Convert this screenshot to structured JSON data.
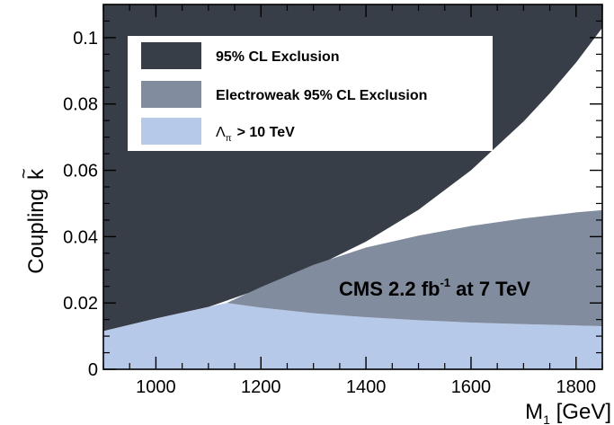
{
  "chart_data": {
    "type": "area",
    "xlabel_main": "M",
    "xlabel_sub": "1",
    "xlabel_unit": " [GeV]",
    "ylabel": "Coupling",
    "ylabel_symbol": "k",
    "ylabel_tilde": "~",
    "xlim": [
      900,
      1850
    ],
    "ylim": [
      0,
      0.11
    ],
    "xticks": [
      1000,
      1200,
      1400,
      1600,
      1800
    ],
    "yticks": [
      0,
      0.02,
      0.04,
      0.06,
      0.08,
      0.1
    ],
    "ytick_labels": [
      "0",
      "0.02",
      "0.04",
      "0.06",
      "0.08",
      "0.1"
    ],
    "grid": false,
    "legend_placement": "top-left",
    "legend": [
      {
        "label": "95% CL Exclusion",
        "color": "#383e48"
      },
      {
        "label": "Electroweak 95% CL Exclusion",
        "color": "#818c9e"
      },
      {
        "label": "> 10 TeV",
        "symbol": "Λ",
        "symbol_sub": "π",
        "color": "#b7c9e8"
      }
    ],
    "annotation": {
      "prefix": "CMS 2.2 fb",
      "sup": "-1",
      "suffix": " at 7 TeV"
    },
    "series": [
      {
        "name": "95% CL Exclusion",
        "color": "#383e48",
        "x": [
          900,
          1000,
          1100,
          1200,
          1300,
          1400,
          1500,
          1600,
          1700,
          1750,
          1800,
          1850
        ],
        "y": [
          0.0115,
          0.0153,
          0.0188,
          0.0243,
          0.0307,
          0.0385,
          0.0481,
          0.06,
          0.0747,
          0.0832,
          0.0925,
          0.103
        ]
      },
      {
        "name": "Electroweak 95% CL Exclusion",
        "color": "#818c9e",
        "x": [
          1135,
          1200,
          1300,
          1400,
          1500,
          1600,
          1700,
          1800,
          1850
        ],
        "y": [
          0.02,
          0.0248,
          0.0315,
          0.0367,
          0.0403,
          0.0432,
          0.0455,
          0.0473,
          0.048
        ]
      },
      {
        "name": "> 10 TeV",
        "color": "#b7c9e8",
        "x": [
          900,
          1000,
          1135,
          1200,
          1300,
          1400,
          1500,
          1600,
          1700,
          1800,
          1850
        ],
        "y": [
          0.0115,
          0.0153,
          0.02,
          0.0186,
          0.0169,
          0.0157,
          0.0148,
          0.0141,
          0.0136,
          0.0132,
          0.013
        ]
      }
    ]
  }
}
